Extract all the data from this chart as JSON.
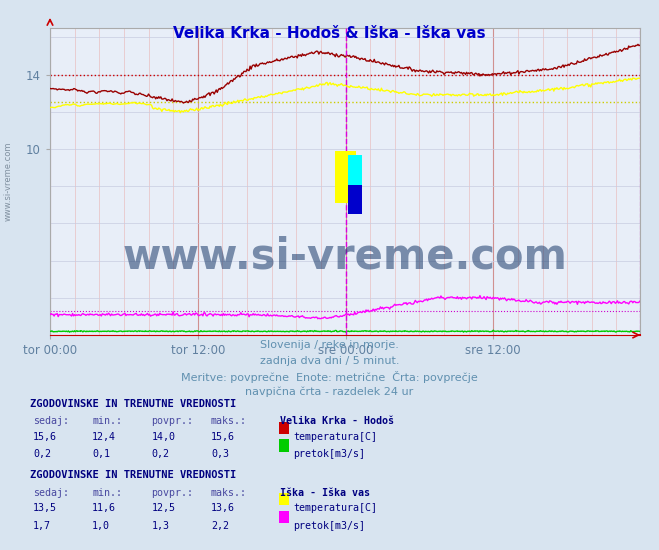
{
  "title": "Velika Krka - Hodoš & Iška - Iška vas",
  "title_color": "#0000cc",
  "bg_color": "#d8e4f0",
  "plot_bg_color": "#e8eef8",
  "grid_v_color": "#e0b0b0",
  "grid_h_color": "#c8cce0",
  "x_labels": [
    "tor 00:00",
    "tor 12:00",
    "sre 00:00",
    "sre 12:00"
  ],
  "x_label_color": "#6080a0",
  "y_ticks": [
    10,
    14
  ],
  "y_tick_color": "#6080a0",
  "subtitle_lines": [
    "Slovenija / reke in morje.",
    "zadnja dva dni / 5 minut.",
    "Meritve: povprečne  Enote: metrične  Črta: povprečje",
    "navpična črta - razdelek 24 ur"
  ],
  "subtitle_color": "#6090b0",
  "watermark_text": "www.si-vreme.com",
  "watermark_color": "#1a3a6a",
  "watermark_alpha": 0.55,
  "n_points": 576,
  "vline_color": "#dd00dd",
  "stats_title_color": "#000080",
  "stats_label_color": "#4848a0",
  "stats_value_color": "#000080",
  "left_label_color": "#8090a0",
  "series": {
    "vk_temp": {
      "color": "#990000",
      "avg": 14.0,
      "label": "temperatura[C]"
    },
    "vk_flow": {
      "color": "#00cc00",
      "avg": 0.2,
      "label": "pretok[m3/s]"
    },
    "iska_temp": {
      "color": "#ffff00",
      "avg": 12.5,
      "label": "temperatura[C]"
    },
    "iska_flow": {
      "color": "#ff00ff",
      "avg": 1.3,
      "label": "pretok[m3/s]"
    }
  },
  "ylim": [
    0,
    16.5
  ],
  "xlim": [
    0,
    575
  ]
}
